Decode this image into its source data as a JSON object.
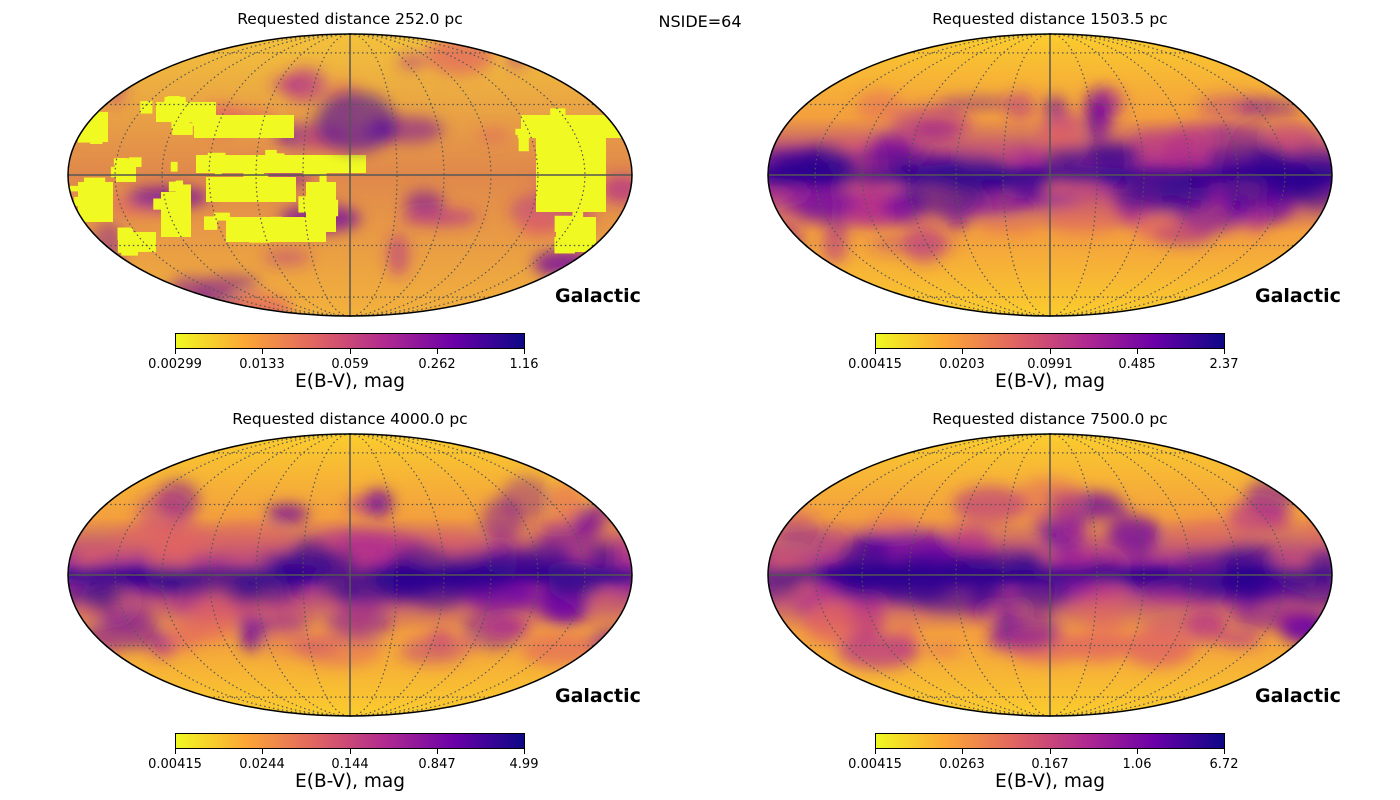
{
  "suptitle": "NSIDE=64",
  "colormap": {
    "name": "plasma_r",
    "stops": [
      "#f0f921",
      "#fca636",
      "#e16462",
      "#b12a90",
      "#6a00a8",
      "#0d0887"
    ]
  },
  "chart_data": [
    {
      "type": "heatmap",
      "projection": "mollweide",
      "coord": "Galactic",
      "title": "Requested distance 252.0 pc",
      "colorbar": {
        "label": "E(B-V), mag",
        "scale": "log",
        "range": [
          0.00299,
          1.16
        ],
        "ticks": [
          "0.00299",
          "0.0133",
          "0.059",
          "0.262",
          "1.16"
        ]
      },
      "dominant_feature": "large saturated low-extinction regions (yellow) with scattered clouds"
    },
    {
      "type": "heatmap",
      "projection": "mollweide",
      "coord": "Galactic",
      "title": "Requested distance 1503.5 pc",
      "colorbar": {
        "label": "E(B-V), mag",
        "scale": "log",
        "range": [
          0.00415,
          2.37
        ],
        "ticks": [
          "0.00415",
          "0.0203",
          "0.0991",
          "0.485",
          "2.37"
        ]
      },
      "dominant_feature": "galactic plane extinction band"
    },
    {
      "type": "heatmap",
      "projection": "mollweide",
      "coord": "Galactic",
      "title": "Requested distance 4000.0 pc",
      "colorbar": {
        "label": "E(B-V), mag",
        "scale": "log",
        "range": [
          0.00415,
          4.99
        ],
        "ticks": [
          "0.00415",
          "0.0244",
          "0.144",
          "0.847",
          "4.99"
        ]
      },
      "dominant_feature": "galactic plane extinction band"
    },
    {
      "type": "heatmap",
      "projection": "mollweide",
      "coord": "Galactic",
      "title": "Requested distance 7500.0 pc",
      "colorbar": {
        "label": "E(B-V), mag",
        "scale": "log",
        "range": [
          0.00415,
          6.72
        ],
        "ticks": [
          "0.00415",
          "0.0263",
          "0.167",
          "1.06",
          "6.72"
        ]
      },
      "dominant_feature": "galactic plane extinction band"
    }
  ]
}
